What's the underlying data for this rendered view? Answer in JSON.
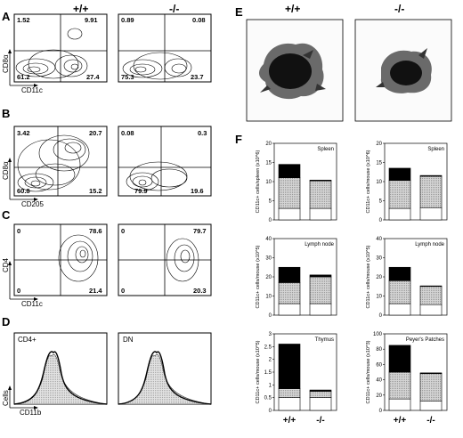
{
  "panel_labels": {
    "a": "A",
    "b": "B",
    "c": "C",
    "d": "D",
    "e": "E",
    "f": "F"
  },
  "genotypes": {
    "wt": "+/+",
    "ko": "-/-"
  },
  "panel_a": {
    "y_label": "CD8α",
    "x_label": "CD11c",
    "wt": {
      "ul": "1.52",
      "ur": "9.91",
      "ll": "61.2",
      "lr": "27.4"
    },
    "ko": {
      "ul": "0.89",
      "ur": "0.08",
      "ll": "75.3",
      "lr": "23.7"
    }
  },
  "panel_b": {
    "y_label": "CD8α",
    "x_label": "CD205",
    "wt": {
      "ul": "3.42",
      "ur": "20.7",
      "ll": "60.8",
      "lr": "15.2"
    },
    "ko": {
      "ul": "0.08",
      "ur": "0.3",
      "ll": "79.9",
      "lr": "19.6"
    }
  },
  "panel_c": {
    "y_label": "CD4",
    "x_label": "CD11c",
    "wt": {
      "ul": "0",
      "ur": "78.6",
      "ll": "0",
      "lr": "21.4"
    },
    "ko": {
      "ul": "0",
      "ur": "79.7",
      "ll": "0",
      "lr": "20.3"
    }
  },
  "panel_d": {
    "y_label": "Cells",
    "x_label": "CD11b",
    "left_title": "CD4+",
    "right_title": "DN"
  },
  "chart_data": [
    {
      "type": "bar",
      "title": "Spleen",
      "ylabel": "CD11c+ cells/spleen (x10^6)",
      "categories": [
        "+/+",
        "-/-"
      ],
      "ylim": [
        0,
        20
      ],
      "yticks": [
        "0",
        "5",
        "10",
        "15",
        "20"
      ],
      "series": [
        {
          "values": [
            3,
            3
          ]
        },
        {
          "values": [
            8,
            7.2
          ]
        },
        {
          "values": [
            3.5,
            0.2
          ]
        }
      ]
    },
    {
      "type": "bar",
      "title": "Spleen",
      "ylabel": "CD11c+ cells/mouse (x10^6)",
      "categories": [
        "+/+",
        "-/-"
      ],
      "ylim": [
        0,
        20
      ],
      "yticks": [
        "0",
        "5",
        "10",
        "15",
        "20"
      ],
      "series": [
        {
          "values": [
            3,
            3.2
          ]
        },
        {
          "values": [
            7.3,
            8.2
          ]
        },
        {
          "values": [
            3.2,
            0.2
          ]
        }
      ]
    },
    {
      "type": "bar",
      "title": "Lymph node",
      "ylabel": "CD11c+ cells/mouse (x10^5)",
      "categories": [
        "+/+",
        "-/-"
      ],
      "ylim": [
        0,
        40
      ],
      "yticks": [
        "0",
        "10",
        "20",
        "30",
        "40"
      ],
      "series": [
        {
          "values": [
            6,
            6
          ]
        },
        {
          "values": [
            11,
            14
          ]
        },
        {
          "values": [
            8,
            1
          ]
        }
      ]
    },
    {
      "type": "bar",
      "title": "Lymph node",
      "ylabel": "CD11c+ cells/mouse (x10^5)",
      "categories": [
        "+/+",
        "-/-"
      ],
      "ylim": [
        0,
        40
      ],
      "yticks": [
        "0",
        "10",
        "20",
        "30",
        "40"
      ],
      "series": [
        {
          "values": [
            6,
            5.5
          ]
        },
        {
          "values": [
            12,
            9.5
          ]
        },
        {
          "values": [
            7,
            0.3
          ]
        }
      ]
    },
    {
      "type": "bar",
      "title": "Thymus",
      "ylabel": "CD11c+ cells/mouse (x10^5)",
      "categories": [
        "+/+",
        "-/-"
      ],
      "ylim": [
        0,
        3
      ],
      "yticks": [
        "0",
        "0.5",
        "1",
        "1.5",
        "2",
        "2.5",
        "3"
      ],
      "series": [
        {
          "values": [
            0.5,
            0.5
          ]
        },
        {
          "values": [
            0.35,
            0.25
          ]
        },
        {
          "values": [
            1.75,
            0.05
          ]
        }
      ]
    },
    {
      "type": "bar",
      "title": "Peyer's Patches",
      "ylabel": "CD11c+ cells/mouse (x10^3)",
      "categories": [
        "+/+",
        "-/-"
      ],
      "ylim": [
        0,
        100
      ],
      "yticks": [
        "0",
        "20",
        "40",
        "60",
        "80",
        "100"
      ],
      "series": [
        {
          "values": [
            15,
            12
          ]
        },
        {
          "values": [
            35,
            36
          ]
        },
        {
          "values": [
            35,
            1
          ]
        }
      ]
    }
  ]
}
